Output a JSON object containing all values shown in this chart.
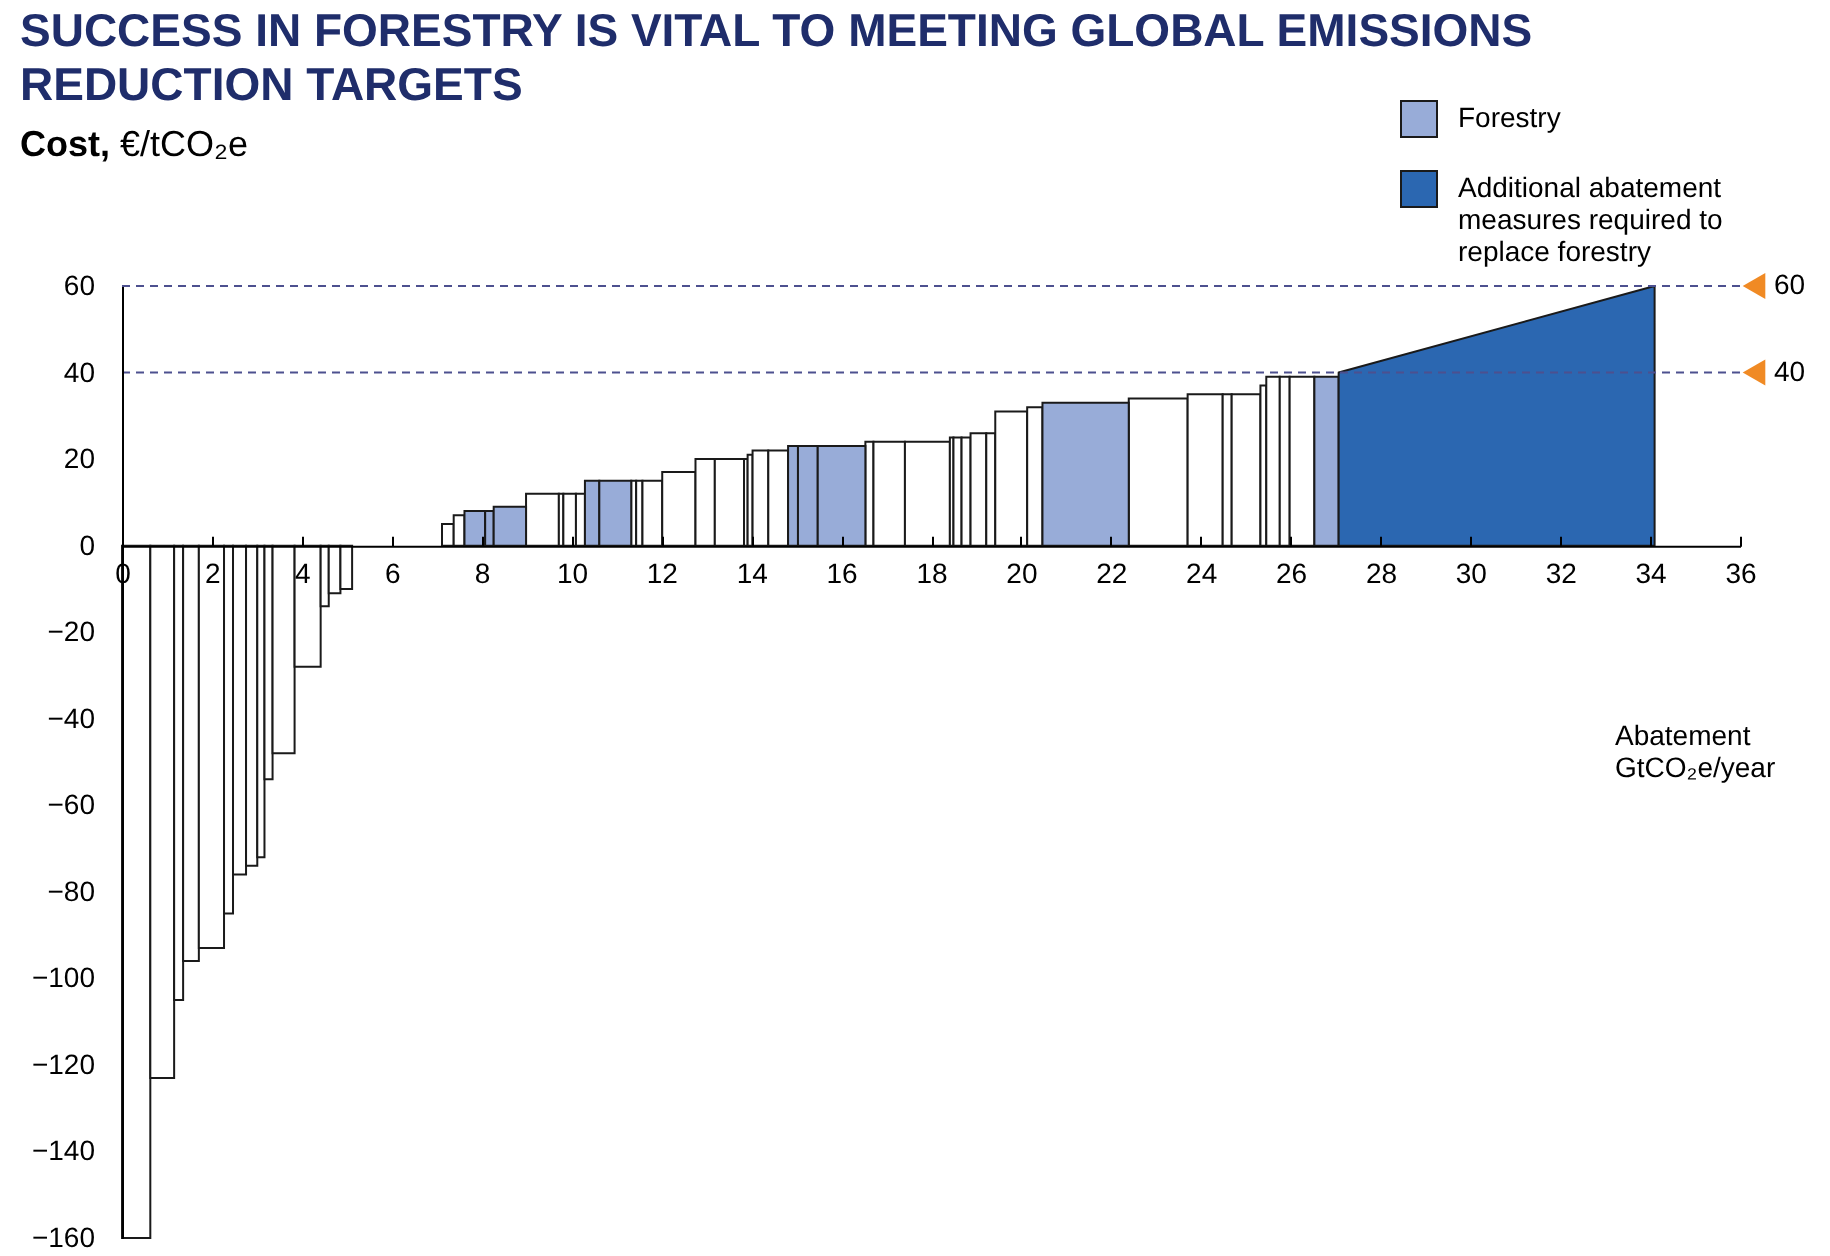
{
  "chart_data": {
    "type": "histogram",
    "title": "SUCCESS IN FORESTRY IS VITAL TO MEETING GLOBAL EMISSIONS REDUCTION TARGETS",
    "ylabel": "Cost, €/tCO₂e",
    "xlabel": "Abatement GtCO₂e/year",
    "bins": [
      0,
      0.63,
      1.16,
      1.36,
      1.71,
      2.27,
      2.47,
      2.76,
      3.01,
      3.17,
      3.35,
      3.84,
      4.42,
      4.6,
      4.86,
      5.12,
      7.12,
      7.38,
      7.62,
      8.08,
      8.27,
      8.99,
      9.72,
      9.82,
      10.1,
      10.3,
      10.62,
      11.33,
      11.44,
      11.58,
      12.02,
      12.76,
      13.19,
      13.84,
      13.92,
      14.03,
      14.38,
      14.82,
      15.04,
      15.48,
      16.54,
      16.72,
      17.42,
      18.42,
      18.5,
      18.68,
      18.88,
      19.23,
      19.43,
      20.14,
      20.48,
      22.4,
      23.71,
      24.49,
      24.69,
      25.33,
      25.46,
      25.76,
      25.98,
      26.53,
      27.07
    ],
    "series": [
      {
        "color": "#ffffff",
        "values": [
          -160,
          -123,
          -105,
          -96,
          -93,
          -85,
          -76,
          -74,
          -72,
          -54,
          -48,
          -28,
          -14,
          -11,
          -10,
          null,
          5,
          7,
          null,
          null,
          null,
          12,
          12,
          12,
          12,
          null,
          null,
          15,
          15,
          15,
          17,
          20,
          20,
          20,
          21,
          22,
          22,
          null,
          null,
          null,
          24,
          24,
          24,
          25,
          25,
          25,
          26,
          26,
          31,
          32,
          null,
          34,
          35,
          35,
          35,
          37,
          39,
          39,
          39,
          null
        ]
      },
      {
        "name": "Forestry",
        "color": "#98acd8",
        "values": [
          null,
          null,
          null,
          null,
          null,
          null,
          null,
          null,
          null,
          null,
          null,
          null,
          null,
          null,
          null,
          null,
          null,
          null,
          8,
          8,
          9,
          null,
          null,
          null,
          null,
          15,
          15,
          null,
          null,
          null,
          null,
          null,
          null,
          null,
          null,
          null,
          null,
          23,
          23,
          23,
          null,
          null,
          null,
          null,
          null,
          null,
          null,
          null,
          null,
          null,
          33,
          null,
          null,
          null,
          null,
          null,
          null,
          null,
          null,
          39
        ]
      },
      {
        "name": "Additional abatement measures required to replace forestry",
        "type": "area",
        "color": "#2b67b1",
        "x": [
          27.07,
          34.1
        ],
        "values": [
          40,
          60
        ]
      }
    ],
    "xlim": [
      0,
      36
    ],
    "xticks": [
      0,
      2,
      4,
      6,
      8,
      10,
      12,
      14,
      16,
      18,
      20,
      22,
      24,
      26,
      28,
      30,
      32,
      34,
      36
    ],
    "ylim": [
      -160,
      60
    ],
    "yticks": [
      -160,
      -140,
      -120,
      -100,
      -80,
      -60,
      -40,
      -20,
      0,
      20,
      40,
      60
    ],
    "ref_lines": [
      {
        "axis": "y",
        "value": 60,
        "label": "60",
        "color": "#4d508f",
        "line_style": "dashed"
      },
      {
        "axis": "y",
        "value": 40,
        "label": "40",
        "color": "#4d508f",
        "line_style": "dashed"
      }
    ],
    "grid": false,
    "legend": "top right"
  }
}
